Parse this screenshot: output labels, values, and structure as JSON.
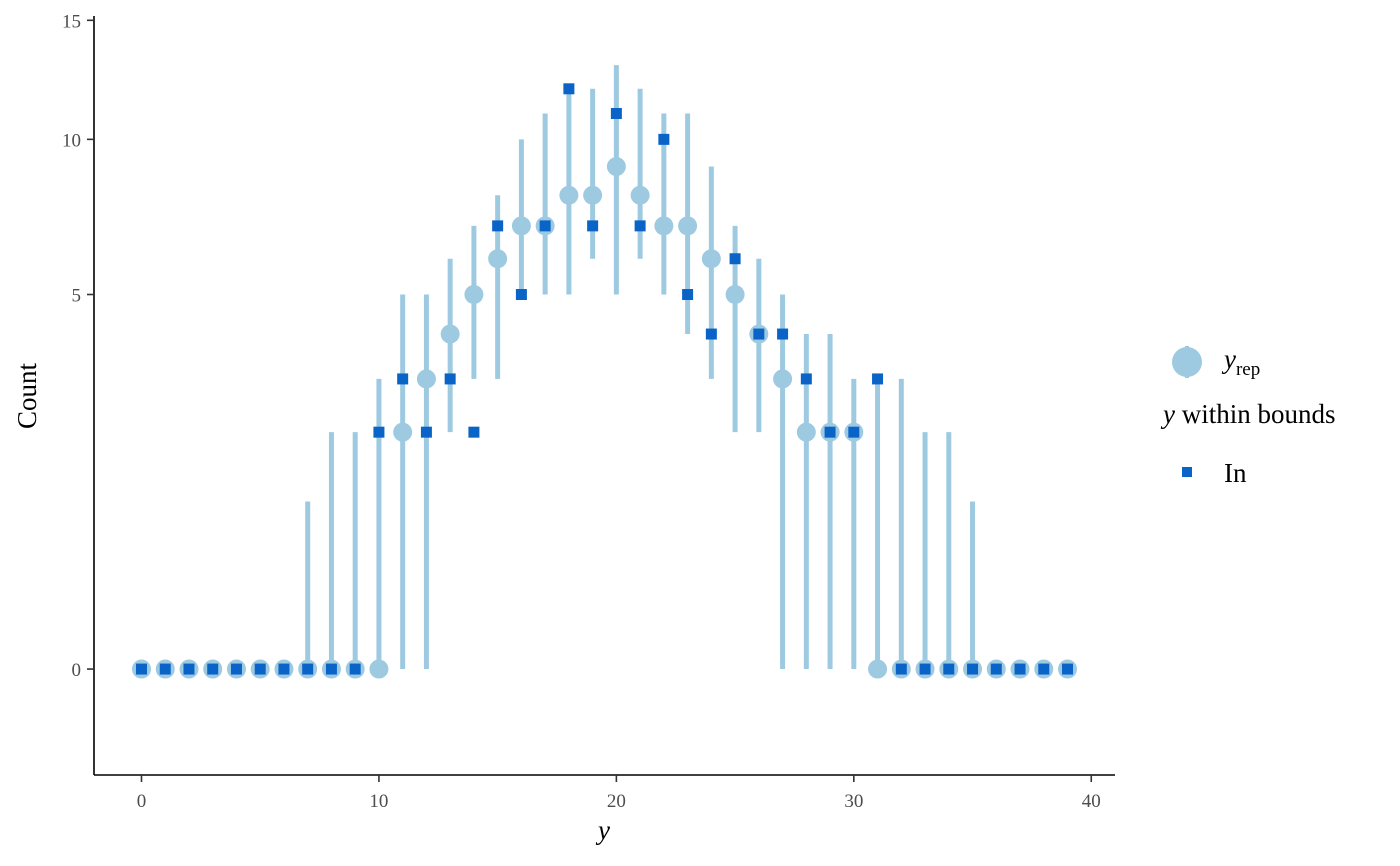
{
  "chart_data": {
    "type": "scatter",
    "x": [
      0,
      1,
      2,
      3,
      4,
      5,
      6,
      7,
      8,
      9,
      10,
      11,
      12,
      13,
      14,
      15,
      16,
      17,
      18,
      19,
      20,
      21,
      22,
      23,
      24,
      25,
      26,
      27,
      28,
      29,
      30,
      31,
      32,
      33,
      34,
      35,
      36,
      37,
      38,
      39
    ],
    "series": [
      {
        "name": "y_rep",
        "kind": "point-interval",
        "color": "#9ecae1",
        "median": [
          0,
          0,
          0,
          0,
          0,
          0,
          0,
          0,
          0,
          0,
          0,
          2,
          3,
          4,
          5,
          6,
          7,
          7,
          8,
          8,
          9,
          8,
          7,
          7,
          6,
          5,
          4,
          3,
          2,
          2,
          2,
          0,
          0,
          0,
          0,
          0,
          0,
          0,
          0,
          0
        ],
        "lower": [
          0,
          0,
          0,
          0,
          0,
          0,
          0,
          0,
          0,
          0,
          0,
          0,
          0,
          2,
          3,
          3,
          5,
          5,
          5,
          6,
          5,
          6,
          5,
          4,
          3,
          2,
          2,
          0,
          0,
          0,
          0,
          0,
          0,
          0,
          0,
          0,
          0,
          0,
          0,
          0
        ],
        "upper": [
          0,
          0,
          0,
          0,
          0,
          0,
          0,
          1,
          2,
          2,
          3,
          5,
          5,
          6,
          7,
          8,
          10,
          11,
          12,
          12,
          13,
          12,
          11,
          11,
          9,
          7,
          6,
          5,
          4,
          4,
          3,
          3,
          3,
          2,
          2,
          1,
          0,
          0,
          0,
          0
        ]
      },
      {
        "name": "In",
        "kind": "point",
        "color": "#0a64c8",
        "values": [
          0,
          0,
          0,
          0,
          0,
          0,
          0,
          0,
          0,
          0,
          2,
          3,
          2,
          3,
          2,
          7,
          5,
          7,
          12,
          7,
          11,
          7,
          10,
          5,
          4,
          6,
          4,
          4,
          3,
          2,
          2,
          3,
          0,
          0,
          0,
          0,
          0,
          0,
          0,
          0
        ]
      }
    ],
    "xlabel": "y",
    "ylabel": "Count",
    "xlim": [
      -2,
      41
    ],
    "ylim": [
      -0.4,
      15.2
    ],
    "x_ticks": [
      0,
      10,
      20,
      30,
      40
    ],
    "y_ticks": [
      0,
      5,
      10,
      15
    ],
    "y_scale": "sqrt",
    "grid": false,
    "legend": {
      "position": "right",
      "entry1_base": "y",
      "entry1_sub": "rep",
      "title_var": "y",
      "title_rest": " within bounds",
      "entry2_label": "In"
    }
  }
}
